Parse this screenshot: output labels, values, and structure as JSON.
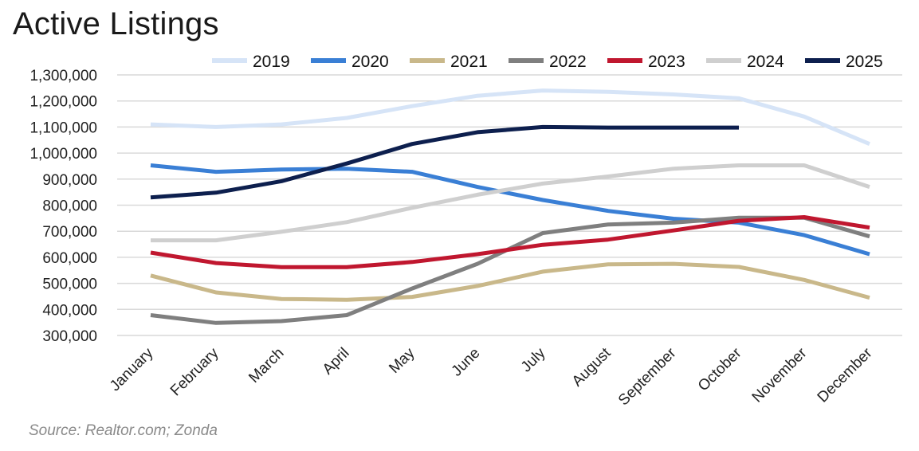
{
  "title": "Active Listings",
  "source": "Source: Realtor.com; Zonda",
  "chart_data": {
    "type": "line",
    "title": "Active Listings",
    "xlabel": "",
    "ylabel": "",
    "ylim": [
      300000,
      1300000
    ],
    "yticks": [
      300000,
      400000,
      500000,
      600000,
      700000,
      800000,
      900000,
      1000000,
      1100000,
      1200000,
      1300000
    ],
    "ytick_labels": [
      "300,000",
      "400,000",
      "500,000",
      "600,000",
      "700,000",
      "800,000",
      "900,000",
      "1,000,000",
      "1,100,000",
      "1,200,000",
      "1,300,000"
    ],
    "categories": [
      "January",
      "February",
      "March",
      "April",
      "May",
      "June",
      "July",
      "August",
      "September",
      "October",
      "November",
      "December"
    ],
    "grid": true,
    "legend_position": "top",
    "series": [
      {
        "name": "2019",
        "color": "#d6e4f7",
        "values": [
          1110000,
          1100000,
          1110000,
          1135000,
          1180000,
          1220000,
          1240000,
          1235000,
          1225000,
          1210000,
          1140000,
          1035000
        ]
      },
      {
        "name": "2020",
        "color": "#3a7fd5",
        "values": [
          953000,
          928000,
          937000,
          940000,
          928000,
          870000,
          820000,
          778000,
          748000,
          733000,
          685000,
          612000
        ]
      },
      {
        "name": "2021",
        "color": "#c9b88a",
        "values": [
          530000,
          465000,
          440000,
          437000,
          448000,
          490000,
          545000,
          573000,
          575000,
          563000,
          513000,
          445000
        ]
      },
      {
        "name": "2022",
        "color": "#7f7f7f",
        "values": [
          378000,
          348000,
          355000,
          378000,
          480000,
          575000,
          693000,
          726000,
          733000,
          752000,
          752000,
          680000
        ]
      },
      {
        "name": "2023",
        "color": "#c0172f",
        "values": [
          618000,
          578000,
          562000,
          562000,
          582000,
          612000,
          648000,
          668000,
          703000,
          740000,
          754000,
          714000
        ]
      },
      {
        "name": "2024",
        "color": "#cfcfcf",
        "values": [
          665000,
          665000,
          698000,
          735000,
          790000,
          840000,
          883000,
          910000,
          940000,
          953000,
          953000,
          870000
        ]
      },
      {
        "name": "2025",
        "color": "#0d1f4e",
        "values": [
          830000,
          848000,
          892000,
          960000,
          1035000,
          1080000,
          1100000,
          1098000,
          1098000,
          1098000,
          null,
          null
        ]
      }
    ]
  }
}
